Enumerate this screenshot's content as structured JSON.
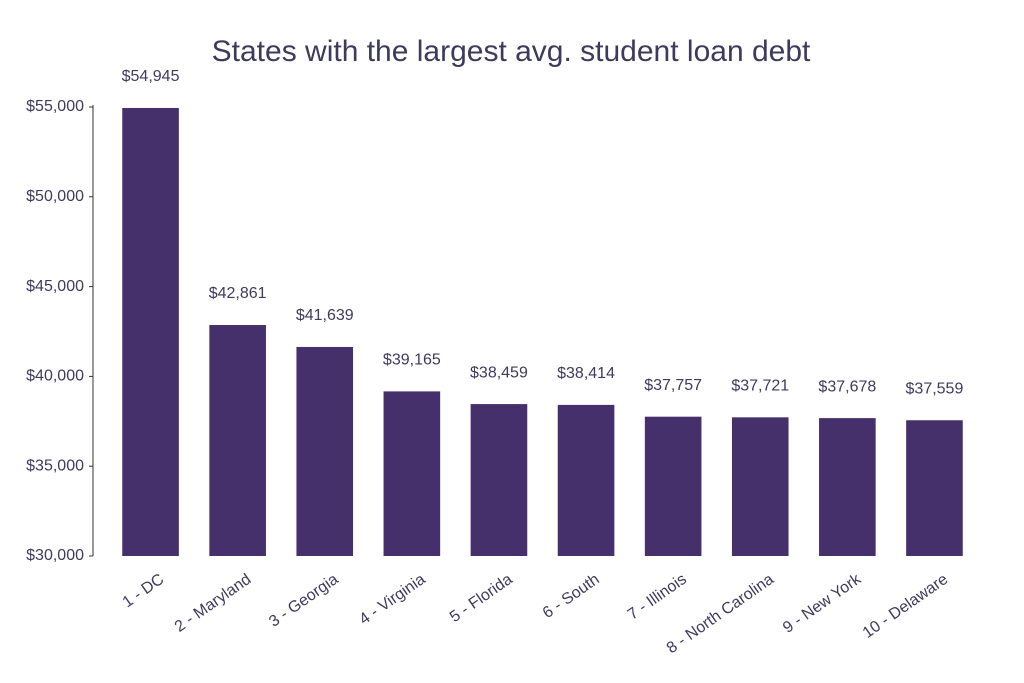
{
  "chart_data": {
    "type": "bar",
    "title": "States with the largest avg. student loan debt",
    "categories": [
      "1 - DC",
      "2 - Maryland",
      "3 - Georgia",
      "4 - Virginia",
      "5 - Florida",
      "6 - South",
      "7 - Illinois",
      "8 - North Carolina",
      "9 - New York",
      "10 - Delaware"
    ],
    "values": [
      54945,
      42861,
      41639,
      39165,
      38459,
      38414,
      37757,
      37721,
      37678,
      37559
    ],
    "value_labels": [
      "$54,945",
      "$42,861",
      "$41,639",
      "$39,165",
      "$38,459",
      "$38,414",
      "$37,757",
      "$37,721",
      "$37,678",
      "$37,559"
    ],
    "color": "#45306b",
    "ylim": [
      30000,
      55000
    ],
    "yticks": [
      {
        "value": 30000,
        "label": "$30,000"
      },
      {
        "value": 35000,
        "label": "$35,000"
      },
      {
        "value": 40000,
        "label": "$40,000"
      },
      {
        "value": 45000,
        "label": "$45,000"
      },
      {
        "value": 50000,
        "label": "$50,000"
      },
      {
        "value": 55000,
        "label": "$55,000"
      }
    ],
    "grid": false
  }
}
